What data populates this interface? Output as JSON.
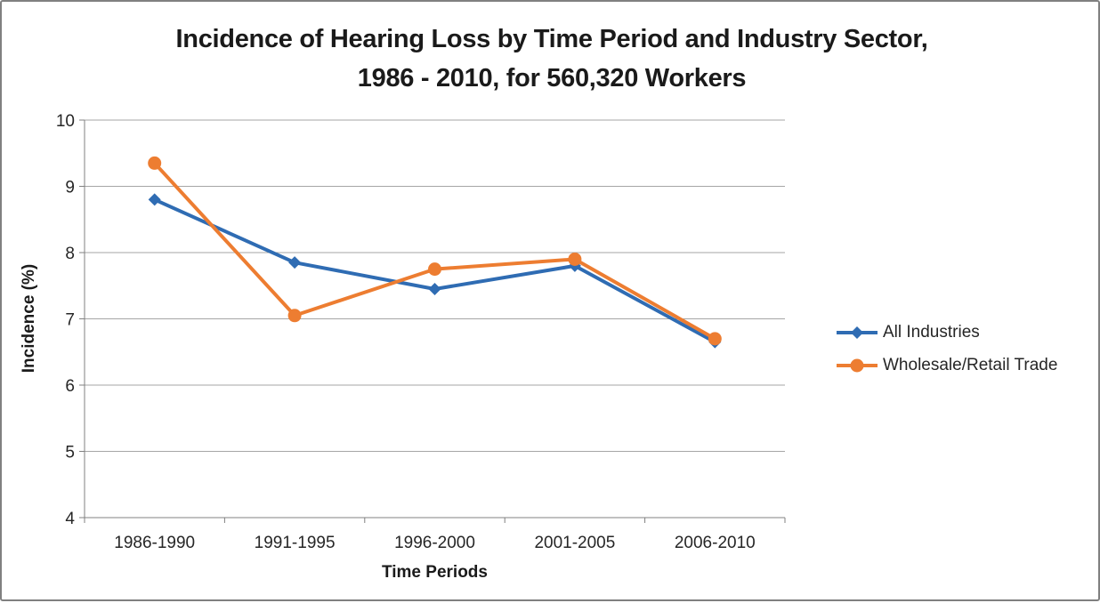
{
  "chart_data": {
    "type": "line",
    "title_line1": "Incidence of Hearing Loss by Time Period and Industry Sector,",
    "title_line2": "1986 - 2010, for 560,320 Workers",
    "xlabel": "Time Periods",
    "ylabel": "Incidence (%)",
    "categories": [
      "1986-1990",
      "1991-1995",
      "1996-2000",
      "2001-2005",
      "2006-2010"
    ],
    "yticks": [
      4,
      5,
      6,
      7,
      8,
      9,
      10
    ],
    "ylim": [
      4,
      10
    ],
    "grid": "horizontal",
    "legend_position": "right",
    "series": [
      {
        "name": "All Industries",
        "marker": "diamond",
        "color": "#2F6CB3",
        "values": [
          8.8,
          7.85,
          7.45,
          7.8,
          6.65
        ]
      },
      {
        "name": "Wholesale/Retail Trade",
        "marker": "circle",
        "color": "#ED7D31",
        "values": [
          9.35,
          7.05,
          7.75,
          7.9,
          6.7
        ]
      }
    ]
  },
  "colors": {
    "gridline": "#A6A6A6",
    "axis": "#808080",
    "text": "#262626",
    "title_text": "#1A1A1A",
    "frame_border": "#808080",
    "background": "#FFFFFF"
  }
}
